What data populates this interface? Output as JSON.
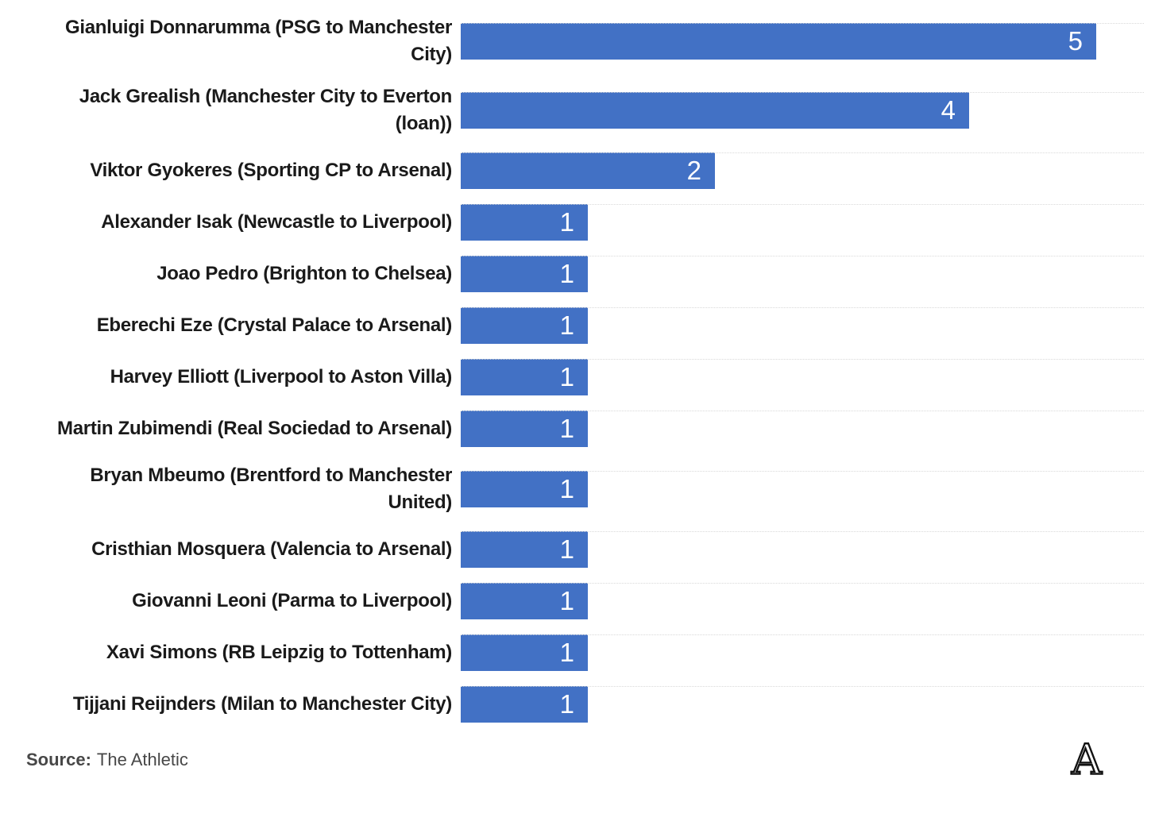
{
  "chart_data": {
    "type": "bar",
    "orientation": "horizontal",
    "title": "",
    "xlabel": "",
    "ylabel": "",
    "legend": "none",
    "grid": "dotted-row-separators",
    "value_labels": "inside-bar-end",
    "xlim": [
      0,
      5.4
    ],
    "bar_color": "#4271C5",
    "categories": [
      "Gianluigi Donnarumma (PSG to Manchester City)",
      "Jack Grealish (Manchester City to Everton (loan))",
      "Viktor Gyokeres (Sporting CP to Arsenal)",
      "Alexander Isak (Newcastle to Liverpool)",
      "Joao Pedro (Brighton to Chelsea)",
      "Eberechi Eze (Crystal Palace to Arsenal)",
      "Harvey Elliott (Liverpool to Aston Villa)",
      "Martin Zubimendi (Real Sociedad to Arsenal)",
      "Bryan Mbeumo (Brentford to Manchester United)",
      "Cristhian Mosquera (Valencia to Arsenal)",
      "Giovanni Leoni (Parma to Liverpool)",
      "Xavi Simons (RB Leipzig to Tottenham)",
      "Tijjani Reijnders (Milan to Manchester City)"
    ],
    "values": [
      5,
      4,
      2,
      1,
      1,
      1,
      1,
      1,
      1,
      1,
      1,
      1,
      1
    ]
  },
  "footer": {
    "source_label": "Source:",
    "source_value": "The Athletic",
    "logo_letter": "A"
  },
  "colors": {
    "bar": "#4271C5",
    "value_label": "#FFFFFF",
    "category_label": "#1A1A1A",
    "row_separator": "#D9D9D9",
    "source_text": "#474747"
  }
}
